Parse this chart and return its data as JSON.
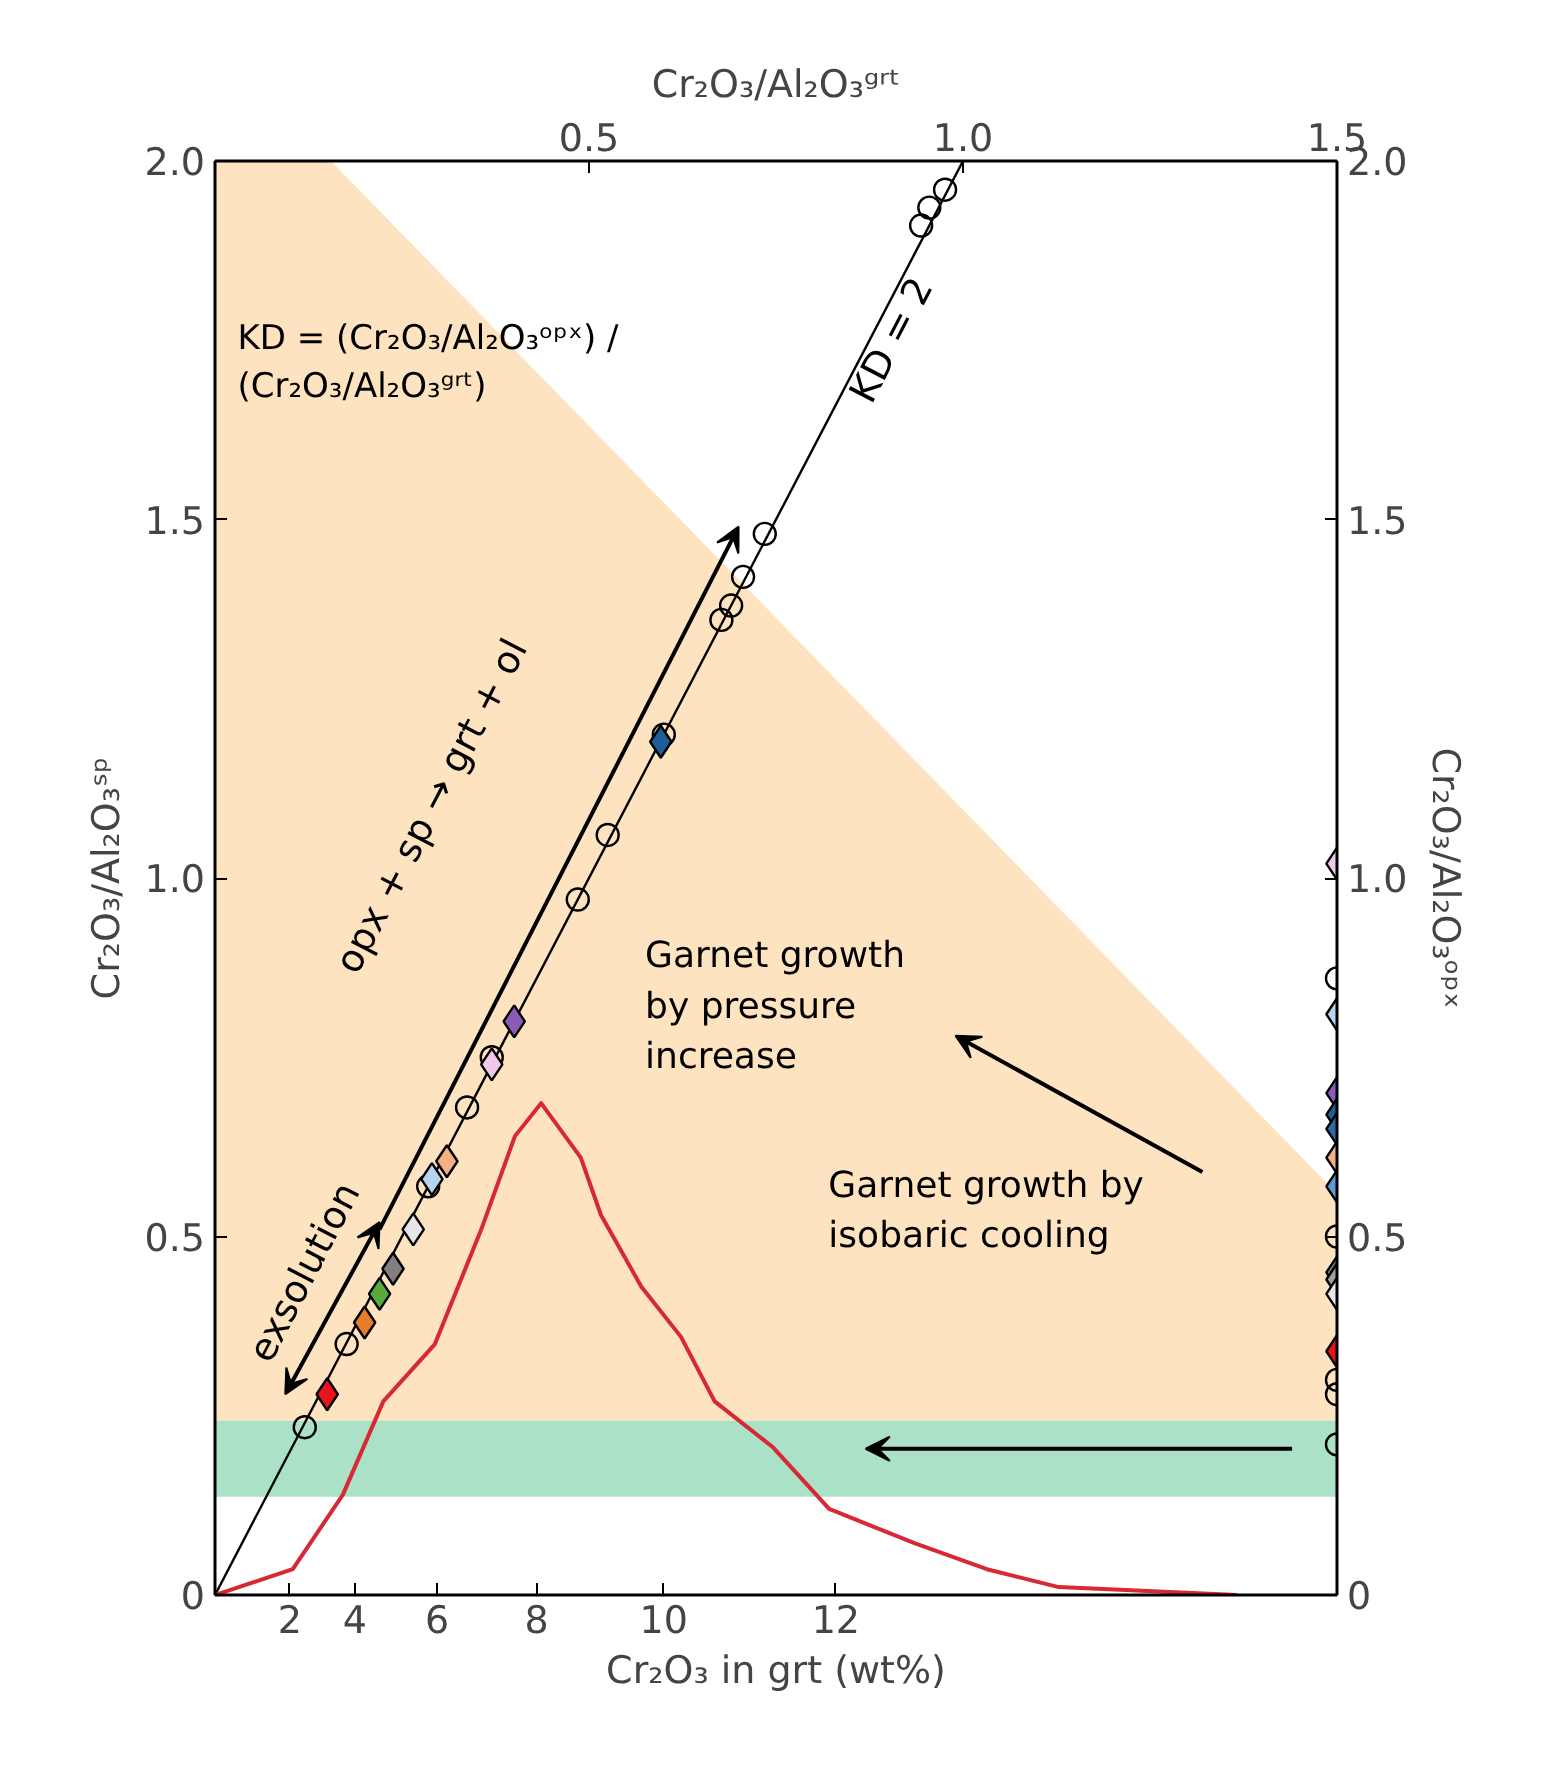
{
  "chart_data": {
    "type": "scatter",
    "xlabel": "Cr₂O₃/Al₂O₃ᵍʳᵗ",
    "x2label": "Cr₂O₃ in grt (wt%)",
    "ylabel": "Cr₂O₃/Al₂O₃ˢᵖ",
    "y2label": "Cr₂O₃/Al₂O₃ᵒᵖˣ",
    "xlim": [
      0,
      1.5
    ],
    "xticks": [
      0.5,
      {
        "value": 1.0,
        "label": "1.0"
      },
      1.5
    ],
    "ylim": [
      0,
      2.0
    ],
    "yticks": [
      0,
      0.5,
      {
        "value": 1.0,
        "label": "1.0"
      },
      1.5,
      {
        "value": 2.0,
        "label": "2.0"
      }
    ],
    "y2lim": [
      0,
      2.0
    ],
    "y2ticks": [
      0,
      0.5,
      {
        "value": 1.0,
        "label": "1.0"
      },
      1.5,
      {
        "value": 2.0,
        "label": "2.0"
      }
    ],
    "grid": false,
    "bands": [
      {
        "axis": "y",
        "from": 0.137,
        "to": 0.243,
        "color": "#abe1c7"
      }
    ],
    "series": [
      {
        "type": "area",
        "color": "#fde3c0",
        "x": [
          0,
          0.155,
          1.5
        ],
        "values": [
          2.0,
          2.0,
          0.56
        ]
      },
      {
        "type": "line",
        "color": "#000000",
        "x": [
          0,
          1.0
        ],
        "values": [
          0,
          2.0
        ],
        "marker": "none"
      },
      {
        "type": "line",
        "color": "#d62835",
        "x": [
          0,
          0.104,
          0.171,
          0.225,
          0.294,
          0.356,
          0.401,
          0.436,
          0.489,
          0.516,
          0.57,
          0.623,
          0.668,
          0.746,
          0.821,
          0.936,
          1.032,
          1.128,
          1.366
        ],
        "values": [
          0,
          0.036,
          0.14,
          0.27,
          0.35,
          0.51,
          0.64,
          0.686,
          0.61,
          0.53,
          0.43,
          0.36,
          0.27,
          0.206,
          0.12,
          0.072,
          0.036,
          0.011,
          0
        ],
        "marker": "none"
      },
      {
        "marker": "circle",
        "color": "#000000",
        "x": [
          0.12,
          0.176,
          0.285,
          0.337,
          0.37,
          0.485,
          0.525,
          0.6,
          0.677,
          0.69,
          0.706,
          0.735,
          0.944,
          0.955,
          0.976
        ],
        "values": [
          0.234,
          0.35,
          0.57,
          0.68,
          0.75,
          0.97,
          1.06,
          1.2,
          1.36,
          1.38,
          1.42,
          1.48,
          1.91,
          1.935,
          1.96
        ]
      },
      {
        "marker": "diamond",
        "x": [
          0.15,
          0.2,
          0.22,
          0.238,
          0.265,
          0.29,
          0.31,
          0.37,
          0.4,
          0.596
        ],
        "values": [
          0.28,
          0.38,
          0.42,
          0.455,
          0.51,
          0.58,
          0.605,
          0.74,
          0.8,
          1.19
        ],
        "colors": [
          "#e8141c",
          "#e87d2b",
          "#5aa93c",
          "#808080",
          "#e6e6e6",
          "#b8d4ee",
          "#f4b183",
          "#efc8e8",
          "#8b5bb5",
          "#1f5f99"
        ]
      },
      {
        "marker": "circle",
        "color": "#000000",
        "x": [
          1.5,
          1.5,
          1.5,
          1.5,
          1.5
        ],
        "values": [
          0.86,
          0.5,
          0.3,
          0.28,
          0.21
        ]
      },
      {
        "marker": "diamond",
        "x": [
          1.5,
          1.5,
          1.5,
          1.5,
          1.5,
          1.5,
          1.5,
          1.5,
          1.5,
          1.5,
          1.5
        ],
        "values": [
          1.02,
          0.81,
          0.7,
          0.67,
          0.65,
          0.61,
          0.57,
          0.45,
          0.44,
          0.42,
          0.34
        ],
        "colors": [
          "#efc8e8",
          "#b8d4ee",
          "#8b5bb5",
          "#1f5f99",
          "#2a6aa5",
          "#f4b183",
          "#5b9bd5",
          "#808080",
          "#a0a0a0",
          "#e6e6e6",
          "#e8141c"
        ]
      }
    ],
    "annotations": [
      "KD = (Cr₂O₃/Al₂O₃ᵒᵖˣ) / (Cr₂O₃/Al₂O₃ᵍʳᵗ)",
      "KD = 2",
      "opx + sp → grt + ol",
      "exsolution",
      "Garnet growth by pressure increase",
      "Garnet growth by isobaric cooling",
      "2",
      "4",
      "6",
      "8",
      "10",
      "12"
    ]
  }
}
